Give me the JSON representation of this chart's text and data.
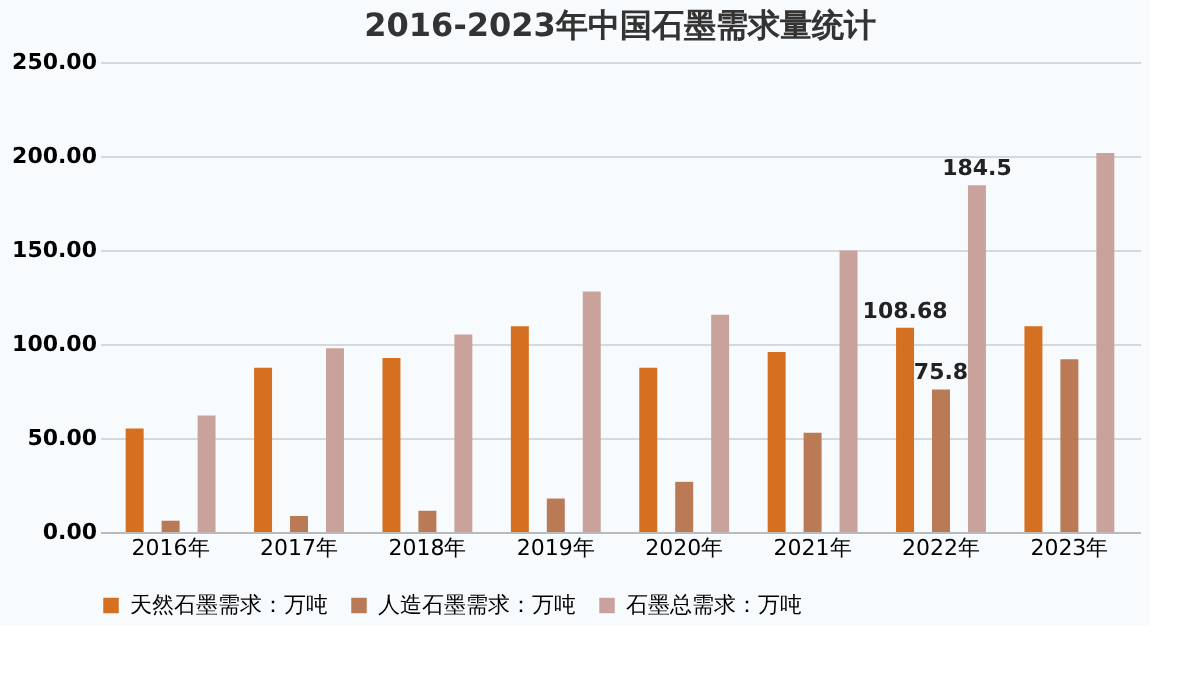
{
  "chart_data": {
    "type": "bar",
    "title": "2016-2023年中国石墨需求量统计",
    "categories": [
      "2016年",
      "2017年",
      "2018年",
      "2019年",
      "2020年",
      "2021年",
      "2022年",
      "2023年"
    ],
    "series": [
      {
        "name": "天然石墨需求：万吨",
        "color": "#d4701f",
        "values": [
          55,
          87.4,
          92.6,
          109.4,
          87.4,
          95.7,
          108.68,
          109.4
        ],
        "value_labels": [
          null,
          null,
          null,
          null,
          null,
          null,
          "108.68",
          null
        ]
      },
      {
        "name": "人造石墨需求：万吨",
        "color": "#b97a55",
        "values": [
          6,
          8.5,
          11.3,
          17.8,
          26.7,
          52.8,
          75.8,
          91.9
        ],
        "value_labels": [
          null,
          null,
          null,
          null,
          null,
          null,
          "75.8",
          null
        ]
      },
      {
        "name": "石墨总需求：万吨",
        "color": "#c9a39b",
        "values": [
          62,
          97.7,
          105,
          127.9,
          115.5,
          149.8,
          184.5,
          201.6
        ],
        "value_labels": [
          null,
          null,
          null,
          null,
          null,
          null,
          "184.5",
          null
        ]
      }
    ],
    "ylim": [
      0,
      250
    ],
    "yticks": [
      {
        "value": 0,
        "label": "0.00"
      },
      {
        "value": 50,
        "label": "50.00"
      },
      {
        "value": 100,
        "label": "100.00"
      },
      {
        "value": 150,
        "label": "150.00"
      },
      {
        "value": 200,
        "label": "200.00"
      },
      {
        "value": 250,
        "label": "250.00"
      }
    ],
    "grid": "y",
    "legend": "bottom"
  }
}
